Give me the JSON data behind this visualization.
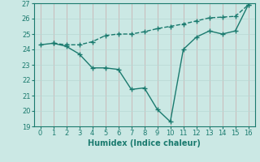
{
  "line1_x": [
    0,
    1,
    2,
    3,
    4,
    5,
    6,
    7,
    8,
    9,
    10,
    11,
    12,
    13,
    14,
    15,
    16
  ],
  "line1_y": [
    24.3,
    24.4,
    24.2,
    23.7,
    22.8,
    22.8,
    22.7,
    21.4,
    21.5,
    20.1,
    19.3,
    24.0,
    24.8,
    25.2,
    25.0,
    25.2,
    26.9
  ],
  "line2_x": [
    1,
    2,
    3,
    4,
    5,
    6,
    7,
    8,
    9,
    10,
    11,
    12,
    13,
    14,
    15,
    16
  ],
  "line2_y": [
    24.4,
    24.3,
    24.3,
    24.5,
    24.9,
    25.0,
    25.0,
    25.15,
    25.35,
    25.5,
    25.65,
    25.85,
    26.05,
    26.1,
    26.15,
    26.9
  ],
  "color": "#1a7a6e",
  "bg_color": "#cbe8e4",
  "grid_color_v": "#c8a8a8",
  "grid_color_h": "#b8d8d4",
  "xlabel": "Humidex (Indice chaleur)",
  "xlim": [
    -0.5,
    16.5
  ],
  "ylim": [
    19,
    27
  ],
  "yticks": [
    19,
    20,
    21,
    22,
    23,
    24,
    25,
    26,
    27
  ],
  "xticks": [
    0,
    1,
    2,
    3,
    4,
    5,
    6,
    7,
    8,
    9,
    10,
    11,
    12,
    13,
    14,
    15,
    16
  ],
  "xlabel_fontsize": 7,
  "tick_fontsize": 6,
  "line1_style": "-",
  "line2_style": "--",
  "linewidth": 1.0,
  "marker": "+",
  "markersize": 4,
  "markeredgewidth": 1.0
}
